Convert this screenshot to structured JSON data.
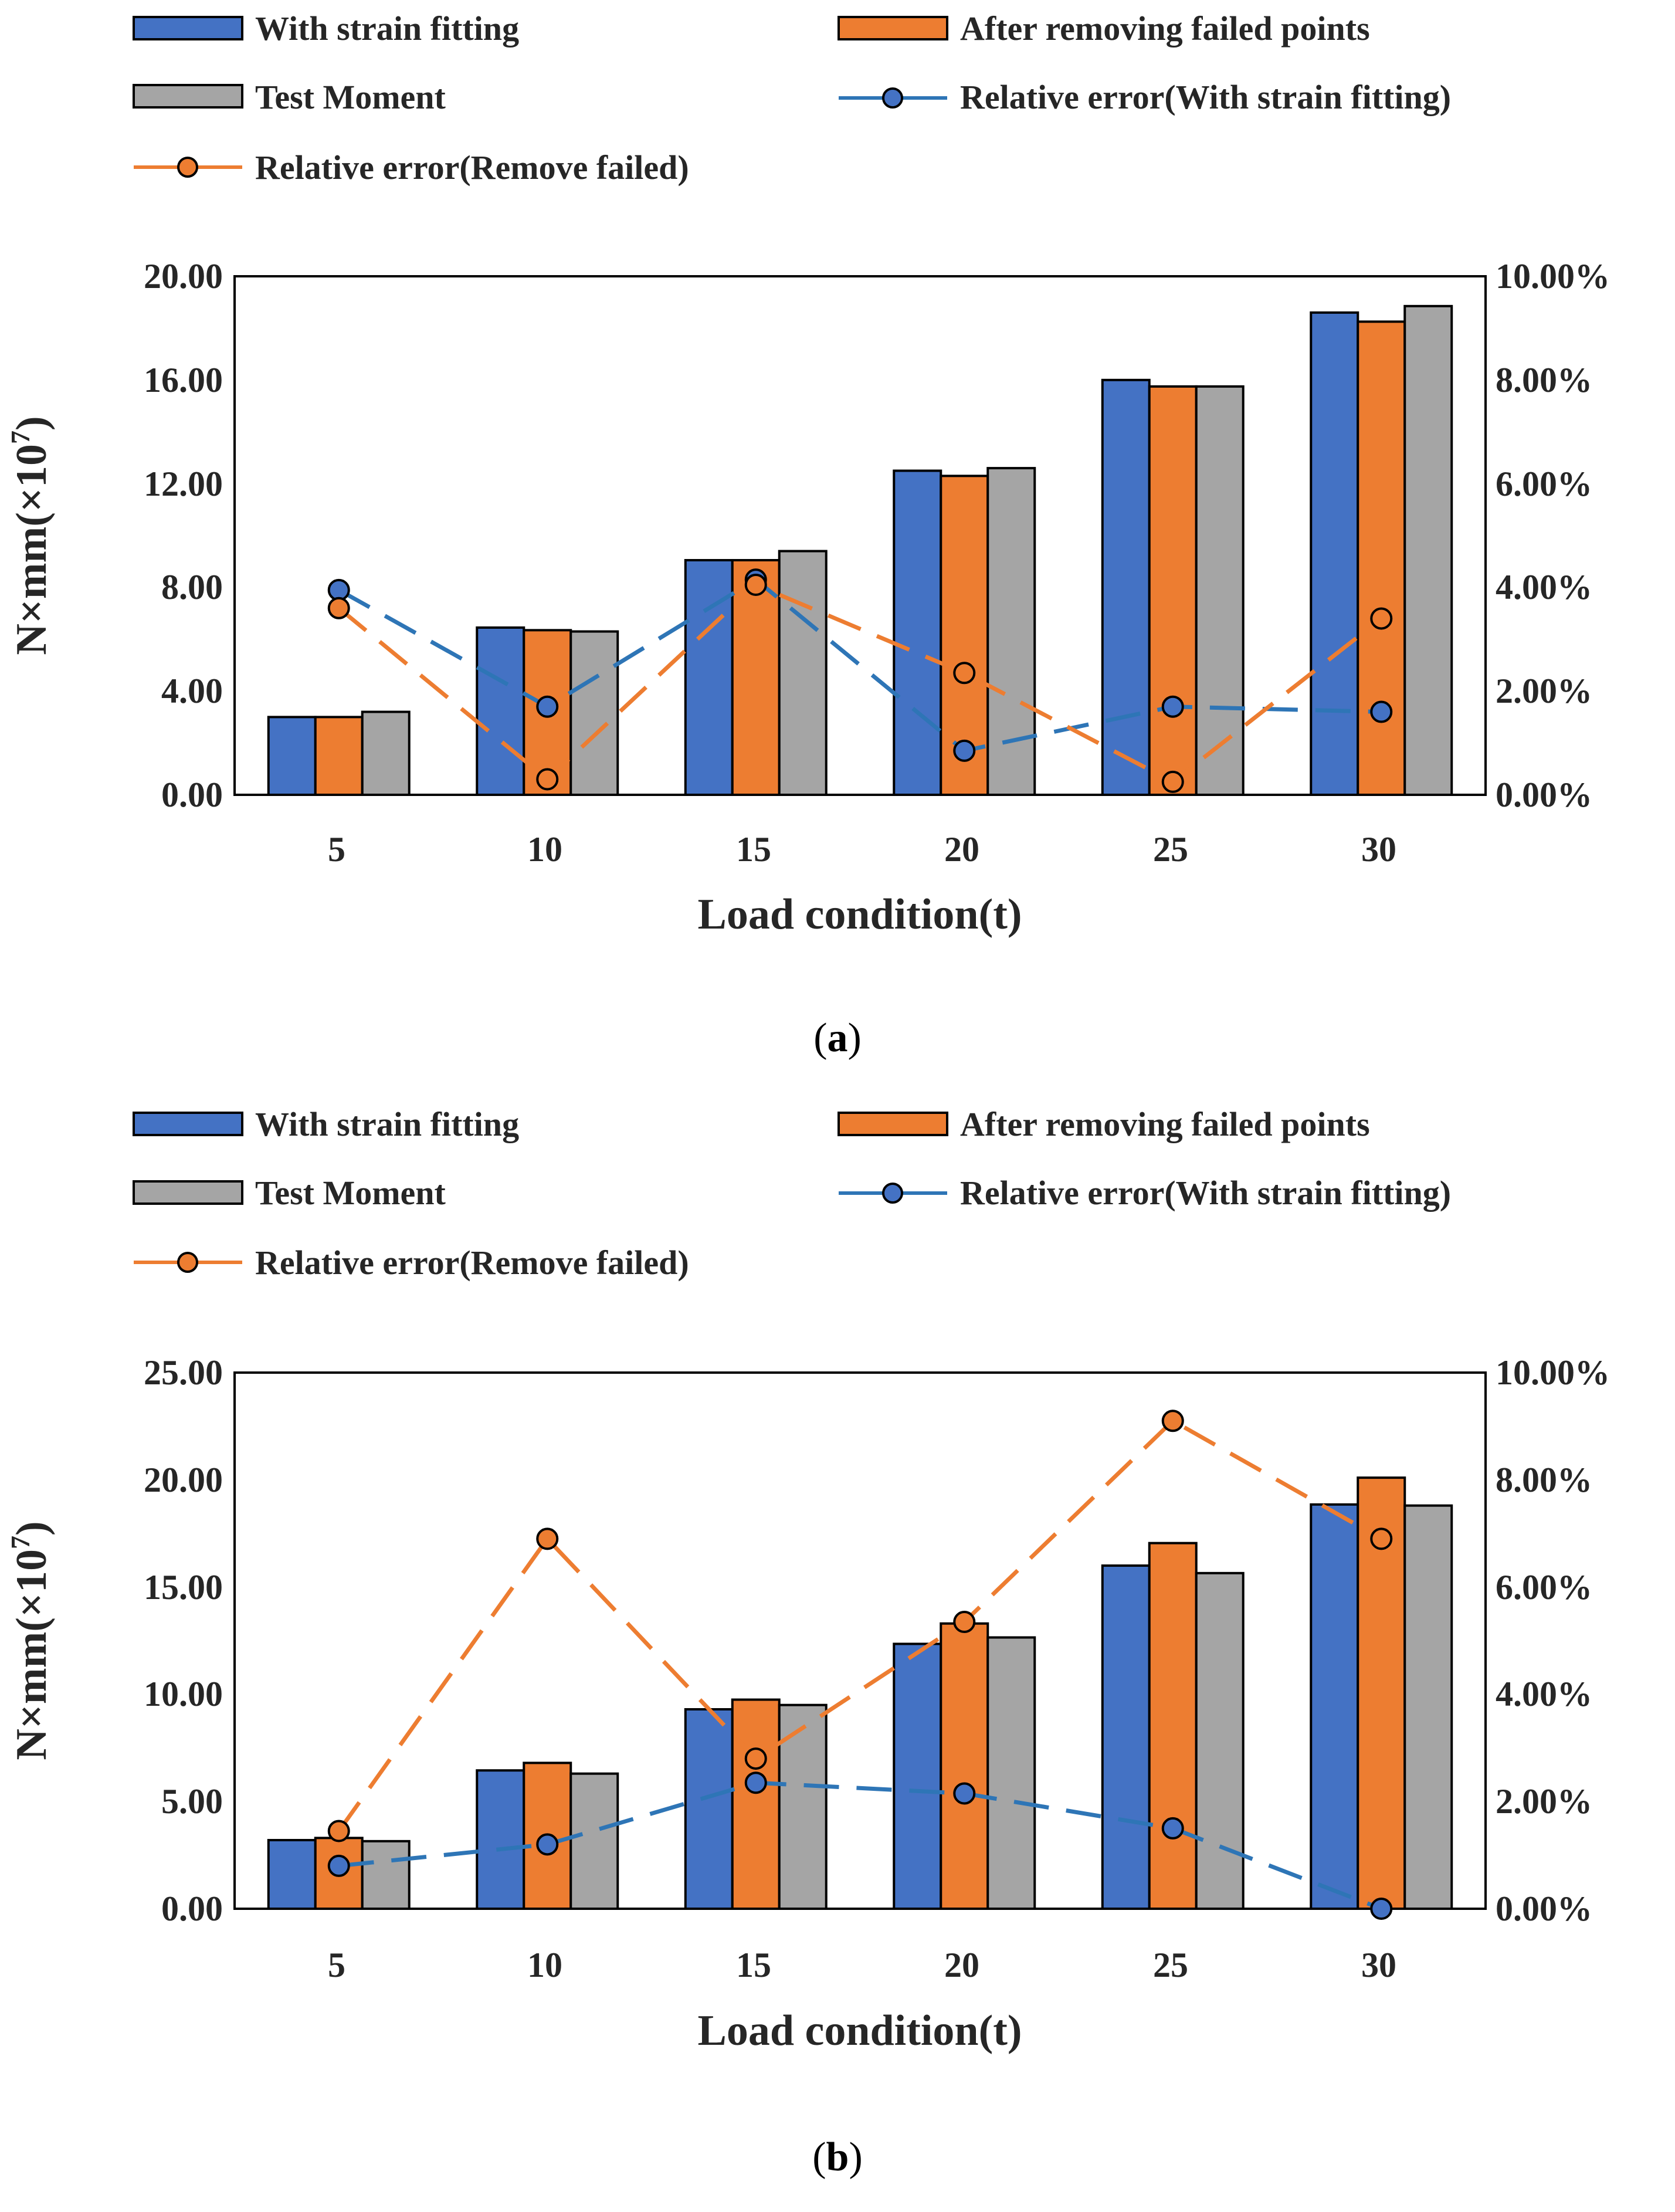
{
  "colors": {
    "with_strain_fitting": "#4472C4",
    "after_removing_failed_points": "#ED7D31",
    "test_moment": "#A5A5A5",
    "err_fitting_line": "#2E75B6",
    "err_removed_line": "#ED7D31"
  },
  "chart_data": [
    {
      "type": "bar",
      "panel_label": "a",
      "legend": [
        "With strain fitting",
        "After removing failed points",
        "Test Moment",
        "Relative error(With strain fitting)",
        "Relative error(Remove failed)"
      ],
      "categories": [
        "5",
        "10",
        "15",
        "20",
        "25",
        "30"
      ],
      "xlabel": "Load condition(t)",
      "ylabel": {
        "base": "N×mm(×10",
        "exp": "7",
        "close": ")"
      },
      "ylim": [
        0,
        20
      ],
      "yticks": [
        "0.00",
        "4.00",
        "8.00",
        "12.00",
        "16.00",
        "20.00"
      ],
      "y2lim": [
        0,
        0.1
      ],
      "y2ticks": [
        "0.00%",
        "2.00%",
        "4.00%",
        "6.00%",
        "8.00%",
        "10.00%"
      ],
      "series": [
        {
          "name": "With strain fitting",
          "kind": "bar",
          "values": [
            3.0,
            6.45,
            9.05,
            12.5,
            16.0,
            18.6
          ]
        },
        {
          "name": "After removing failed points",
          "kind": "bar",
          "values": [
            3.0,
            6.35,
            9.05,
            12.3,
            15.75,
            18.25
          ]
        },
        {
          "name": "Test Moment",
          "kind": "bar",
          "values": [
            3.2,
            6.3,
            9.4,
            12.6,
            15.75,
            18.85
          ]
        },
        {
          "name": "Relative error(With strain fitting)",
          "kind": "line",
          "axis": "right",
          "values": [
            0.0395,
            0.017,
            0.0415,
            0.0085,
            0.017,
            0.016
          ]
        },
        {
          "name": "Relative error(Remove failed)",
          "kind": "line",
          "axis": "right",
          "values": [
            0.036,
            0.003,
            0.0405,
            0.0235,
            0.0025,
            0.034
          ]
        }
      ]
    },
    {
      "type": "bar",
      "panel_label": "b",
      "legend": [
        "With strain fitting",
        "After removing failed points",
        "Test Moment",
        "Relative error(With strain fitting)",
        "Relative error(Remove failed)"
      ],
      "categories": [
        "5",
        "10",
        "15",
        "20",
        "25",
        "30"
      ],
      "xlabel": "Load condition(t)",
      "ylabel": {
        "base": "N×mm(×10",
        "exp": "7",
        "close": ")"
      },
      "ylim": [
        0,
        25
      ],
      "yticks": [
        "0.00",
        "5.00",
        "10.00",
        "15.00",
        "20.00",
        "25.00"
      ],
      "y2lim": [
        0,
        0.1
      ],
      "y2ticks": [
        "0.00%",
        "2.00%",
        "4.00%",
        "6.00%",
        "8.00%",
        "10.00%"
      ],
      "series": [
        {
          "name": "With strain fitting",
          "kind": "bar",
          "values": [
            3.2,
            6.45,
            9.3,
            12.35,
            16.0,
            18.85
          ]
        },
        {
          "name": "After removing failed points",
          "kind": "bar",
          "values": [
            3.3,
            6.8,
            9.75,
            13.3,
            17.05,
            20.1
          ]
        },
        {
          "name": "Test Moment",
          "kind": "bar",
          "values": [
            3.15,
            6.3,
            9.5,
            12.65,
            15.65,
            18.8
          ]
        },
        {
          "name": "Relative error(With strain fitting)",
          "kind": "line",
          "axis": "right",
          "values": [
            0.008,
            0.012,
            0.0235,
            0.0215,
            0.015,
            0.0
          ]
        },
        {
          "name": "Relative error(Remove failed)",
          "kind": "line",
          "axis": "right",
          "values": [
            0.0145,
            0.069,
            0.028,
            0.0535,
            0.091,
            0.069
          ]
        }
      ]
    }
  ]
}
